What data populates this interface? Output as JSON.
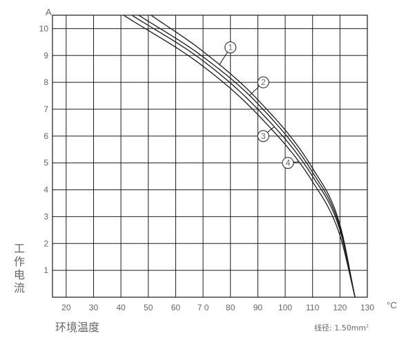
{
  "chart_data": {
    "type": "line",
    "ylabel": "工作电流",
    "xlabel": "环境温度",
    "y_unit": "A",
    "x_unit": "°C",
    "note": "线径: 1.50mm",
    "note_sup": "2",
    "xlim": [
      15,
      130
    ],
    "ylim": [
      0,
      10.5
    ],
    "x_ticks": [
      "20",
      "30",
      "40",
      "50",
      "60",
      "7 0",
      "80",
      "90",
      "100",
      "110",
      "120",
      "130"
    ],
    "x_tick_values": [
      20,
      30,
      40,
      50,
      60,
      70,
      80,
      90,
      100,
      110,
      120,
      130
    ],
    "y_ticks": [
      "1",
      "2",
      "3",
      "4",
      "5",
      "6",
      "7",
      "8",
      "9",
      "10"
    ],
    "y_tick_values": [
      1,
      2,
      3,
      4,
      5,
      6,
      7,
      8,
      9,
      10
    ],
    "grid": true,
    "series": [
      {
        "name": "1",
        "x": [
          51,
          70,
          90,
          110,
          120,
          125.5
        ],
        "y": [
          10.5,
          9.15,
          7.35,
          4.8,
          2.7,
          0
        ]
      },
      {
        "name": "2",
        "x": [
          46.5,
          70,
          90,
          110,
          120,
          125.5
        ],
        "y": [
          10.5,
          8.95,
          7.2,
          4.65,
          2.6,
          0
        ]
      },
      {
        "name": "3",
        "x": [
          44,
          70,
          90,
          110,
          120,
          125.5
        ],
        "y": [
          10.5,
          8.8,
          7.0,
          4.5,
          2.5,
          0
        ]
      },
      {
        "name": "4",
        "x": [
          41,
          70,
          90,
          110,
          120,
          125.5
        ],
        "y": [
          10.5,
          8.6,
          6.8,
          4.3,
          2.3,
          0
        ]
      }
    ],
    "labels": [
      {
        "text": "1",
        "x": 80,
        "y": 9.3,
        "series_x": 76
      },
      {
        "text": "2",
        "x": 92,
        "y": 8.0,
        "series_x": 87
      },
      {
        "text": "3",
        "x": 92,
        "y": 6.0,
        "series_x": 96
      },
      {
        "text": "4",
        "x": 101,
        "y": 5.0,
        "series_x": 105
      }
    ]
  }
}
